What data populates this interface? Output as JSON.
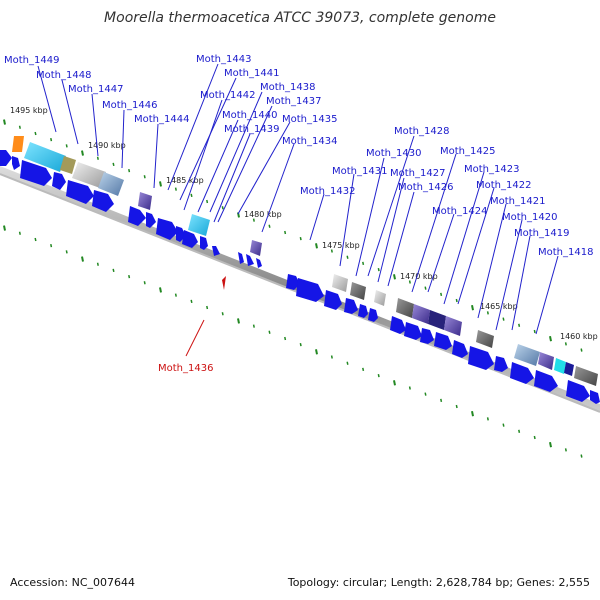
{
  "title": "Moorella thermoacetica ATCC 39073, complete genome",
  "footer": {
    "accession": "Accession: NC_007644",
    "topology": "Topology: circular; Length: 2,628,784 bp; Genes: 2,555"
  },
  "kbp_ticks": [
    "1495 kbp",
    "1490 kbp",
    "1485 kbp",
    "1480 kbp",
    "1475 kbp",
    "1470 kbp",
    "1465 kbp",
    "1460 kbp"
  ],
  "genes": [
    "Moth_1449",
    "Moth_1448",
    "Moth_1447",
    "Moth_1446",
    "Moth_1444",
    "Moth_1443",
    "Moth_1441",
    "Moth_1442",
    "Moth_1438",
    "Moth_1437",
    "Moth_1440",
    "Moth_1439",
    "Moth_1435",
    "Moth_1434",
    "Moth_1432",
    "Moth_1431",
    "Moth_1430",
    "Moth_1428",
    "Moth_1427",
    "Moth_1426",
    "Moth_1425",
    "Moth_1424",
    "Moth_1423",
    "Moth_1422",
    "Moth_1421",
    "Moth_1420",
    "Moth_1419",
    "Moth_1418"
  ],
  "selected_gene": "Moth_1436",
  "colors": {
    "backbone": "#999999",
    "arrow": "#1515e6",
    "label": "#1a1acc",
    "selected": "#cc1111",
    "tick": "#228822"
  }
}
